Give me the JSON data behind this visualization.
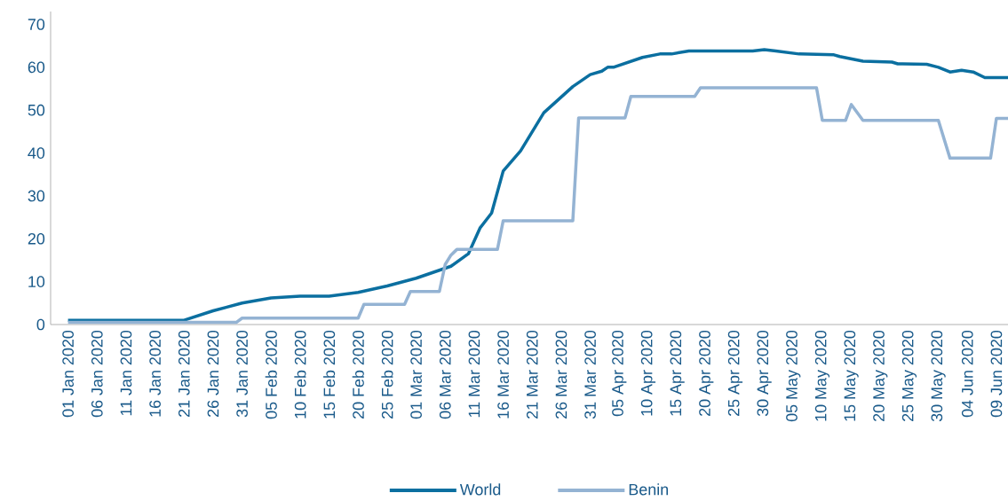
{
  "chart_data": {
    "type": "line",
    "legend": "bottom",
    "line_style": "solid",
    "xlim": [
      "2019-12-29",
      "2020-06-11"
    ],
    "ylim": [
      0,
      73
    ],
    "yticks": [
      0,
      10,
      20,
      30,
      40,
      50,
      60,
      70
    ],
    "xticks": [
      {
        "value": "2020-01-01",
        "label": "01 Jan 2020"
      },
      {
        "value": "2020-01-06",
        "label": "06 Jan 2020"
      },
      {
        "value": "2020-01-11",
        "label": "11 Jan 2020"
      },
      {
        "value": "2020-01-16",
        "label": "16 Jan 2020"
      },
      {
        "value": "2020-01-21",
        "label": "21 Jan 2020"
      },
      {
        "value": "2020-01-26",
        "label": "26 Jan 2020"
      },
      {
        "value": "2020-01-31",
        "label": "31 Jan 2020"
      },
      {
        "value": "2020-02-05",
        "label": "05 Feb 2020"
      },
      {
        "value": "2020-02-10",
        "label": "10 Feb 2020"
      },
      {
        "value": "2020-02-15",
        "label": "15 Feb 2020"
      },
      {
        "value": "2020-02-20",
        "label": "20 Feb 2020"
      },
      {
        "value": "2020-02-25",
        "label": "25 Feb 2020"
      },
      {
        "value": "2020-03-01",
        "label": "01 Mar 2020"
      },
      {
        "value": "2020-03-06",
        "label": "06 Mar 2020"
      },
      {
        "value": "2020-03-11",
        "label": "11 Mar 2020"
      },
      {
        "value": "2020-03-16",
        "label": "16 Mar 2020"
      },
      {
        "value": "2020-03-21",
        "label": "21 Mar 2020"
      },
      {
        "value": "2020-03-26",
        "label": "26 Mar 2020"
      },
      {
        "value": "2020-03-31",
        "label": "31 Mar 2020"
      },
      {
        "value": "2020-04-05",
        "label": "05 Apr 2020"
      },
      {
        "value": "2020-04-10",
        "label": "10 Apr 2020"
      },
      {
        "value": "2020-04-15",
        "label": "15 Apr 2020"
      },
      {
        "value": "2020-04-20",
        "label": "20 Apr 2020"
      },
      {
        "value": "2020-04-25",
        "label": "25 Apr 2020"
      },
      {
        "value": "2020-04-30",
        "label": "30 Apr 2020"
      },
      {
        "value": "2020-05-05",
        "label": "05 May 2020"
      },
      {
        "value": "2020-05-10",
        "label": "10 May 2020"
      },
      {
        "value": "2020-05-15",
        "label": "15 May 2020"
      },
      {
        "value": "2020-05-20",
        "label": "20 May 2020"
      },
      {
        "value": "2020-05-25",
        "label": "25 May 2020"
      },
      {
        "value": "2020-05-30",
        "label": "30 May 2020"
      },
      {
        "value": "2020-06-04",
        "label": "04 Jun 2020"
      },
      {
        "value": "2020-06-09",
        "label": "09 Jun 2020"
      }
    ],
    "series": [
      {
        "name": "World",
        "color": "#0b6fa0",
        "x": [
          "2020-01-01",
          "2020-01-21",
          "2020-01-26",
          "2020-01-31",
          "2020-02-05",
          "2020-02-10",
          "2020-02-15",
          "2020-02-20",
          "2020-02-25",
          "2020-03-01",
          "2020-03-07",
          "2020-03-10",
          "2020-03-12",
          "2020-03-14",
          "2020-03-16",
          "2020-03-19",
          "2020-03-23",
          "2020-03-28",
          "2020-03-31",
          "2020-04-02",
          "2020-04-03",
          "2020-04-04",
          "2020-04-09",
          "2020-04-12",
          "2020-04-14",
          "2020-04-17",
          "2020-04-28",
          "2020-04-30",
          "2020-05-02",
          "2020-05-06",
          "2020-05-12",
          "2020-05-13",
          "2020-05-17",
          "2020-05-22",
          "2020-05-23",
          "2020-05-28",
          "2020-05-30",
          "2020-06-01",
          "2020-06-03",
          "2020-06-05",
          "2020-06-07",
          "2020-06-11"
        ],
        "values": [
          1.0,
          1.0,
          3.2,
          5.0,
          6.2,
          6.6,
          6.6,
          7.5,
          9.0,
          10.8,
          13.6,
          16.5,
          22.5,
          26,
          35.8,
          40.5,
          49.4,
          55.5,
          58.3,
          59.1,
          60.0,
          60.0,
          62.3,
          63.1,
          63.1,
          63.8,
          63.8,
          64.1,
          63.8,
          63.1,
          62.9,
          62.5,
          61.4,
          61.2,
          60.8,
          60.7,
          60.0,
          58.9,
          59.3,
          58.9,
          57.6,
          57.6
        ]
      },
      {
        "name": "Benin",
        "color": "#94b3d3",
        "x": [
          "2020-01-01",
          "2020-01-30",
          "2020-01-31",
          "2020-02-20",
          "2020-02-21",
          "2020-02-28",
          "2020-02-29",
          "2020-03-05",
          "2020-03-06",
          "2020-03-07",
          "2020-03-08",
          "2020-03-15",
          "2020-03-16",
          "2020-03-28",
          "2020-03-29",
          "2020-04-06",
          "2020-04-07",
          "2020-04-18",
          "2020-04-19",
          "2020-05-09",
          "2020-05-10",
          "2020-05-14",
          "2020-05-15",
          "2020-05-17",
          "2020-05-30",
          "2020-06-01",
          "2020-06-08",
          "2020-06-09",
          "2020-06-11"
        ],
        "values": [
          0.5,
          0.5,
          1.5,
          1.5,
          4.7,
          4.7,
          7.7,
          7.7,
          14.0,
          16.2,
          17.5,
          17.5,
          24.2,
          24.2,
          48.2,
          48.2,
          53.2,
          53.2,
          55.2,
          55.2,
          47.6,
          47.6,
          51.3,
          47.6,
          47.6,
          38.8,
          38.8,
          48.1,
          48.1
        ]
      }
    ]
  }
}
